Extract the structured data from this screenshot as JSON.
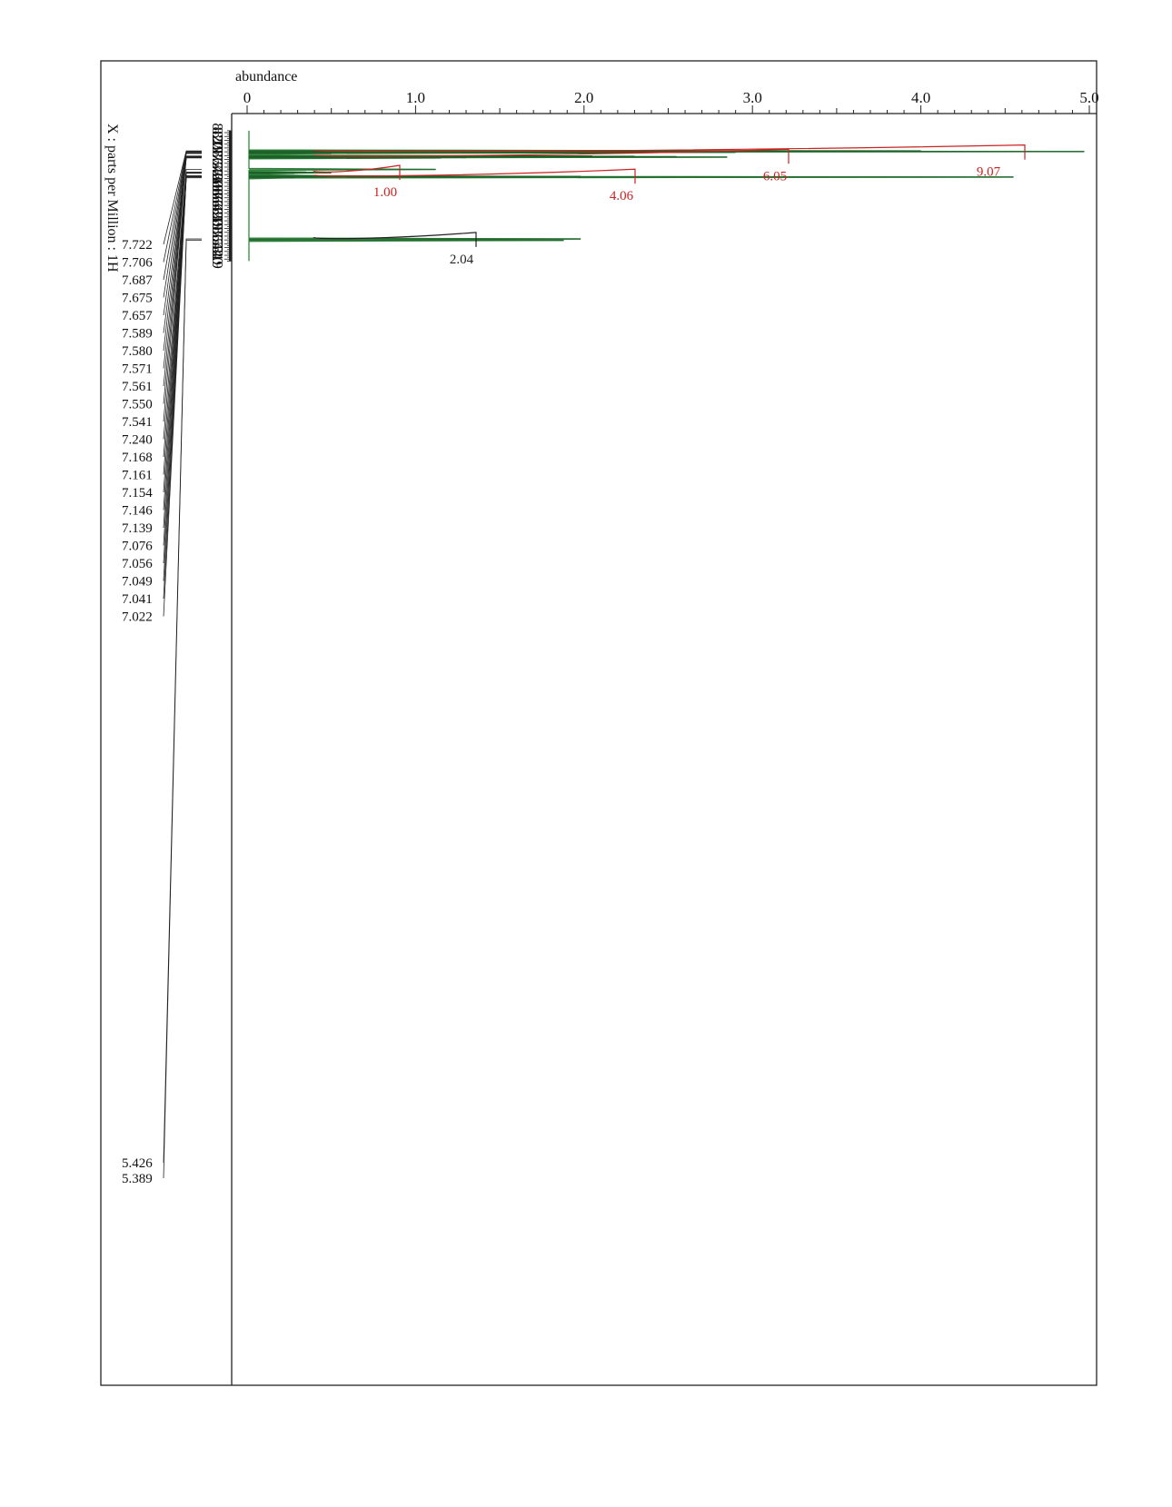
{
  "chart_data": {
    "type": "line",
    "title": "",
    "xlabel": "abundance",
    "ylabel": "X : parts per Million : 1H",
    "x_axis": {
      "label": "abundance",
      "range": [
        0,
        5.0
      ],
      "major_ticks": [
        0,
        1.0,
        2.0,
        3.0,
        4.0,
        5.0
      ],
      "major_tick_labels": [
        "0",
        "1.0",
        "2.0",
        "3.0",
        "4.0",
        "5.0"
      ],
      "orientation": "horizontal, top"
    },
    "y_axis": {
      "label": "X : parts per Million : 1H",
      "range": [
        8.25,
        4.85
      ],
      "reversed": true,
      "major_ticks": [
        8.2,
        8.1,
        8.0,
        7.9,
        7.8,
        7.7,
        7.6,
        7.5,
        7.4,
        7.3,
        7.2,
        7.1,
        7.0,
        6.9,
        6.8,
        6.7,
        6.6,
        6.5,
        6.4,
        6.3,
        6.2,
        6.1,
        6.0,
        5.9,
        5.8,
        5.7,
        5.6,
        5.5,
        5.4,
        5.3,
        5.2,
        5.1,
        5.0,
        4.9
      ],
      "major_tick_labels": [
        "8.2",
        "8.1",
        "8.0",
        "7.9",
        "7.8",
        "7.7",
        "7.6",
        "7.5",
        "7.4",
        "7.3",
        "7.2",
        "7.1",
        "7.0",
        "6.9",
        "6.8",
        "6.7",
        "6.6",
        "6.5",
        "6.4",
        "6.3",
        "6.2",
        "6.1",
        "6.0",
        "5.9",
        "5.8",
        "5.7",
        "5.6",
        "5.5",
        "5.4",
        "5.3",
        "5.2",
        "5.1",
        "5.0",
        "4.9"
      ],
      "label_rotation": "90deg"
    },
    "grid": false,
    "series": [
      {
        "color": "#2e8b3a",
        "peaks": [
          {
            "ppm": 7.722,
            "abundance": 4.0
          },
          {
            "ppm": 7.706,
            "abundance": 4.97
          },
          {
            "ppm": 7.687,
            "abundance": 2.9
          },
          {
            "ppm": 7.675,
            "abundance": 2.3
          },
          {
            "ppm": 7.657,
            "abundance": 0.5
          },
          {
            "ppm": 7.589,
            "abundance": 2.05
          },
          {
            "ppm": 7.58,
            "abundance": 2.3
          },
          {
            "ppm": 7.571,
            "abundance": 2.55
          },
          {
            "ppm": 7.561,
            "abundance": 2.85
          },
          {
            "ppm": 7.55,
            "abundance": 1.3
          },
          {
            "ppm": 7.541,
            "abundance": 1.15
          },
          {
            "ppm": 7.24,
            "abundance": 1.12
          },
          {
            "ppm": 7.168,
            "abundance": 0.35
          },
          {
            "ppm": 7.161,
            "abundance": 0.4
          },
          {
            "ppm": 7.154,
            "abundance": 0.5
          },
          {
            "ppm": 7.146,
            "abundance": 0.3
          },
          {
            "ppm": 7.139,
            "abundance": 0.28
          },
          {
            "ppm": 7.076,
            "abundance": 0.42
          },
          {
            "ppm": 7.056,
            "abundance": 1.98
          },
          {
            "ppm": 7.049,
            "abundance": 1.3
          },
          {
            "ppm": 7.041,
            "abundance": 4.55
          },
          {
            "ppm": 7.022,
            "abundance": 0.28
          },
          {
            "ppm": 5.426,
            "abundance": 1.98
          },
          {
            "ppm": 5.389,
            "abundance": 1.88
          }
        ]
      }
    ],
    "peak_labels": [
      "7.722",
      "7.706",
      "7.687",
      "7.675",
      "7.657",
      "7.589",
      "7.580",
      "7.571",
      "7.561",
      "7.550",
      "7.541",
      "7.240",
      "7.168",
      "7.161",
      "7.154",
      "7.146",
      "7.139",
      "7.076",
      "7.056",
      "7.049",
      "7.041",
      "7.022",
      "5.426",
      "5.389"
    ],
    "integrals": [
      {
        "value": "9.07",
        "from_ppm": 7.74,
        "to_ppm": 7.64,
        "color": "#cc2222"
      },
      {
        "value": "6.05",
        "from_ppm": 7.61,
        "to_ppm": 7.53,
        "color": "#cc2222"
      },
      {
        "value": "1.00",
        "from_ppm": 7.2,
        "to_ppm": 7.11,
        "color": "#cc2222"
      },
      {
        "value": "4.06",
        "from_ppm": 7.09,
        "to_ppm": 7.01,
        "color": "#cc2222"
      },
      {
        "value": "2.04",
        "from_ppm": 5.47,
        "to_ppm": 5.36,
        "color": "#222222"
      }
    ]
  }
}
